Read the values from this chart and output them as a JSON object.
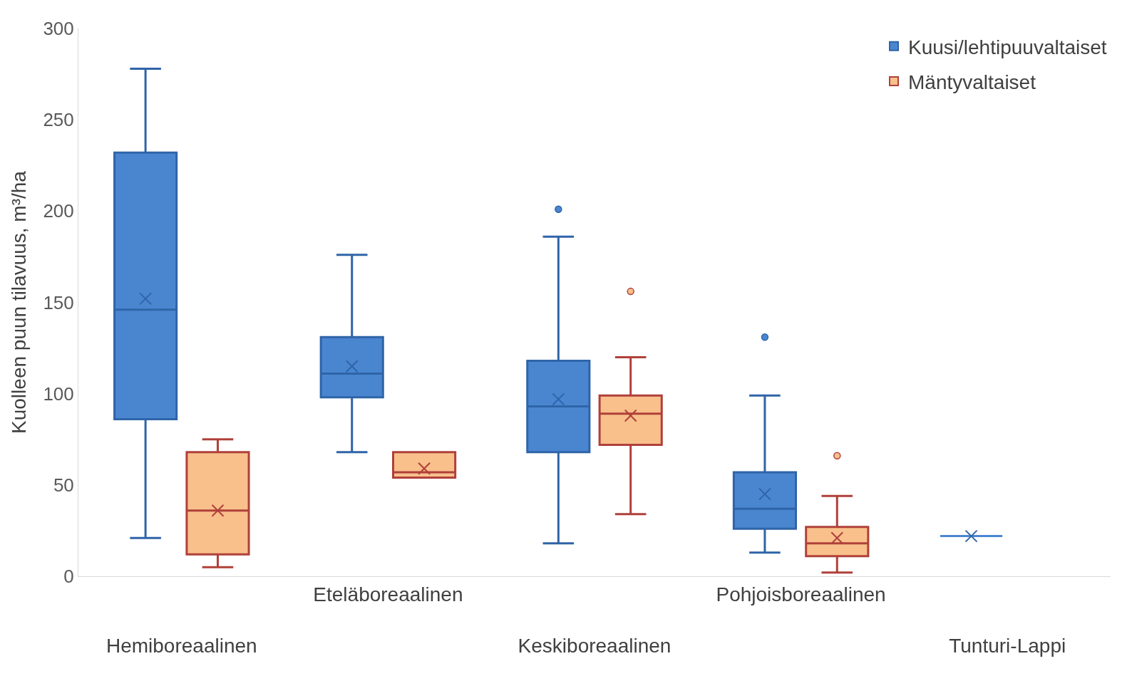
{
  "chart_data": {
    "type": "box",
    "ylabel": "Kuolleen puun tilavuus, m³/ha",
    "categories": [
      "Hemiboreaalinen",
      "Eteläboreaalinen",
      "Keskiboreaalinen",
      "Pohjoisboreaalinen",
      "Tunturi-Lappi"
    ],
    "ylim": [
      0,
      300
    ],
    "yticks": [
      0,
      50,
      100,
      150,
      200,
      250,
      300
    ],
    "legend": "top right",
    "series": [
      {
        "name": "Kuusi/lehtipuuvaltaiset",
        "color": "#4a86d0",
        "boxes": [
          {
            "low": 21,
            "q1": 86,
            "median": 146,
            "q3": 232,
            "high": 278,
            "mean": 152
          },
          {
            "low": 68,
            "q1": 98,
            "median": 111,
            "q3": 131,
            "high": 176,
            "mean": 115
          },
          {
            "low": 18,
            "q1": 68,
            "median": 93,
            "q3": 118,
            "high": 186,
            "mean": 97,
            "outliers": [
              201
            ]
          },
          {
            "low": 13,
            "q1": 26,
            "median": 37,
            "q3": 57,
            "high": 99,
            "mean": 45,
            "outliers": [
              131
            ]
          },
          {
            "low": 22,
            "q1": 22,
            "median": 22,
            "q3": 22,
            "high": 22,
            "mean": 22
          }
        ]
      },
      {
        "name": "Mäntyvaltaiset",
        "color": "#f9c08c",
        "boxes": [
          {
            "low": 5,
            "q1": 12,
            "median": 36,
            "q3": 68,
            "high": 75,
            "mean": 36
          },
          {
            "low": 54,
            "q1": 54,
            "median": 57,
            "q3": 68,
            "high": 68,
            "mean": 59
          },
          {
            "low": 34,
            "q1": 72,
            "median": 89,
            "q3": 99,
            "high": 120,
            "mean": 88,
            "outliers": [
              156
            ]
          },
          {
            "low": 2,
            "q1": 11,
            "median": 18,
            "q3": 27,
            "high": 44,
            "mean": 21,
            "outliers": [
              66
            ]
          },
          null
        ]
      }
    ]
  }
}
